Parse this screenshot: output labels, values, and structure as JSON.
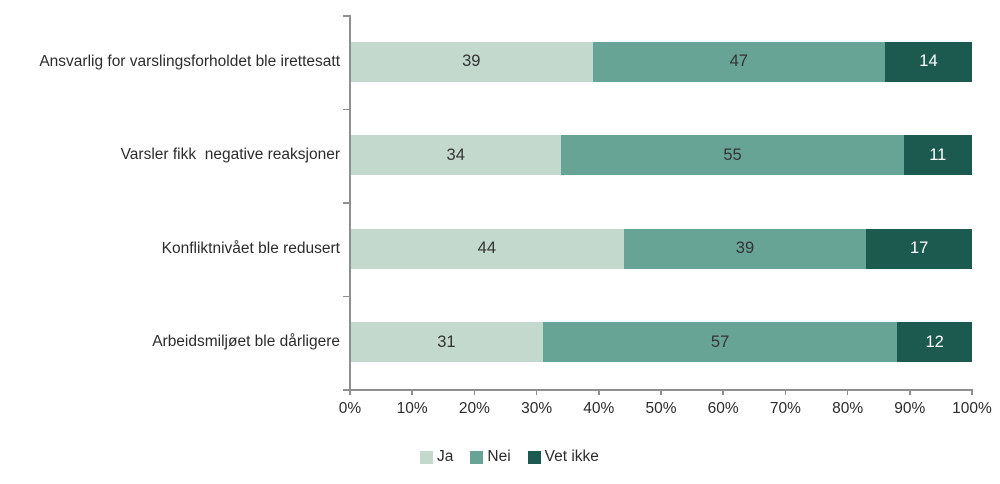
{
  "chart_data": {
    "type": "bar",
    "orientation": "horizontal",
    "stacked": true,
    "title": "",
    "xlabel": "",
    "ylabel": "",
    "xlim": [
      0,
      100
    ],
    "grid": false,
    "legend_position": "bottom",
    "categories": [
      "Ansvarlig for varslingsforholdet ble irettesatt",
      "Varsler fikk  negative reaksjoner",
      "Konfliktnivået ble redusert",
      "Arbeidsmiljøet ble dårligere"
    ],
    "series": [
      {
        "name": "Ja",
        "color": "#c4d9ce",
        "label_color": "#333333",
        "values": [
          39,
          34,
          44,
          31
        ]
      },
      {
        "name": "Nei",
        "color": "#68a496",
        "label_color": "#333333",
        "values": [
          47,
          55,
          39,
          57
        ]
      },
      {
        "name": "Vet ikke",
        "color": "#1c5a50",
        "label_color": "#ffffff",
        "values": [
          14,
          11,
          17,
          12
        ]
      }
    ],
    "x_ticks": [
      "0%",
      "10%",
      "20%",
      "30%",
      "40%",
      "50%",
      "60%",
      "70%",
      "80%",
      "90%",
      "100%"
    ],
    "axis_color": "#8f8f8f"
  }
}
